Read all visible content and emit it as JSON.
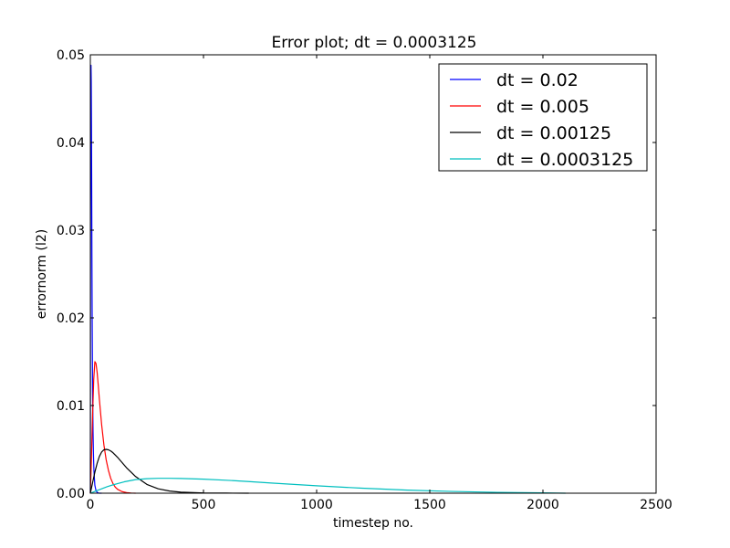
{
  "chart_data": {
    "type": "line",
    "title": "Error plot; dt = 0.0003125",
    "xlabel": "timestep no.",
    "ylabel": "errornorm (l2)",
    "xlim": [
      0,
      2500
    ],
    "ylim": [
      0,
      0.05
    ],
    "xticks": [
      "0",
      "500",
      "1000",
      "1500",
      "2000",
      "2500"
    ],
    "yticks": [
      "0.00",
      "0.01",
      "0.02",
      "0.03",
      "0.04",
      "0.05"
    ],
    "grid": false,
    "legend_position": "top-right",
    "series": [
      {
        "name": "dt = 0.02",
        "color": "#0000ff",
        "x": [
          0,
          1,
          2,
          3,
          4,
          5,
          6,
          7,
          8,
          9,
          10,
          12,
          14,
          16,
          20,
          25,
          30,
          35,
          40,
          45,
          50
        ],
        "y": [
          0.0,
          0.032,
          0.0488,
          0.0488,
          0.047,
          0.042,
          0.035,
          0.027,
          0.021,
          0.016,
          0.0115,
          0.007,
          0.0042,
          0.0025,
          0.0009,
          0.0003,
          0.0001,
          3e-05,
          0.0,
          0.0,
          0.0
        ]
      },
      {
        "name": "dt = 0.005",
        "color": "#ff0000",
        "x": [
          0,
          5,
          10,
          15,
          20,
          25,
          30,
          35,
          40,
          50,
          60,
          70,
          80,
          90,
          100,
          110,
          120,
          140,
          160,
          180,
          200
        ],
        "y": [
          0.0,
          0.004,
          0.009,
          0.013,
          0.015,
          0.0148,
          0.0138,
          0.0123,
          0.0107,
          0.0078,
          0.0055,
          0.0038,
          0.0026,
          0.0017,
          0.0011,
          0.0007,
          0.00045,
          0.00018,
          7e-05,
          2e-05,
          0.0
        ]
      },
      {
        "name": "dt = 0.00125",
        "color": "#000000",
        "x": [
          0,
          10,
          20,
          30,
          40,
          50,
          60,
          70,
          80,
          90,
          100,
          120,
          140,
          160,
          180,
          200,
          250,
          300,
          350,
          400,
          500,
          600,
          700
        ],
        "y": [
          0.0,
          0.0012,
          0.0024,
          0.0034,
          0.0042,
          0.0047,
          0.00495,
          0.005,
          0.00495,
          0.00482,
          0.00462,
          0.0041,
          0.0035,
          0.0029,
          0.0024,
          0.0019,
          0.001,
          0.0005,
          0.00025,
          0.00012,
          3e-05,
          1e-05,
          0.0
        ]
      },
      {
        "name": "dt = 0.0003125",
        "color": "#00bfbf",
        "x": [
          0,
          25,
          50,
          75,
          100,
          150,
          200,
          250,
          300,
          350,
          400,
          500,
          600,
          700,
          800,
          900,
          1000,
          1200,
          1400,
          1600,
          1800,
          2000,
          2100
        ],
        "y": [
          0.0,
          0.00025,
          0.0005,
          0.00075,
          0.00095,
          0.0013,
          0.00155,
          0.00165,
          0.0017,
          0.0017,
          0.00168,
          0.0016,
          0.00148,
          0.00133,
          0.00116,
          0.001,
          0.00085,
          0.00057,
          0.00035,
          0.0002,
          0.0001,
          4e-05,
          0.0
        ]
      }
    ]
  }
}
